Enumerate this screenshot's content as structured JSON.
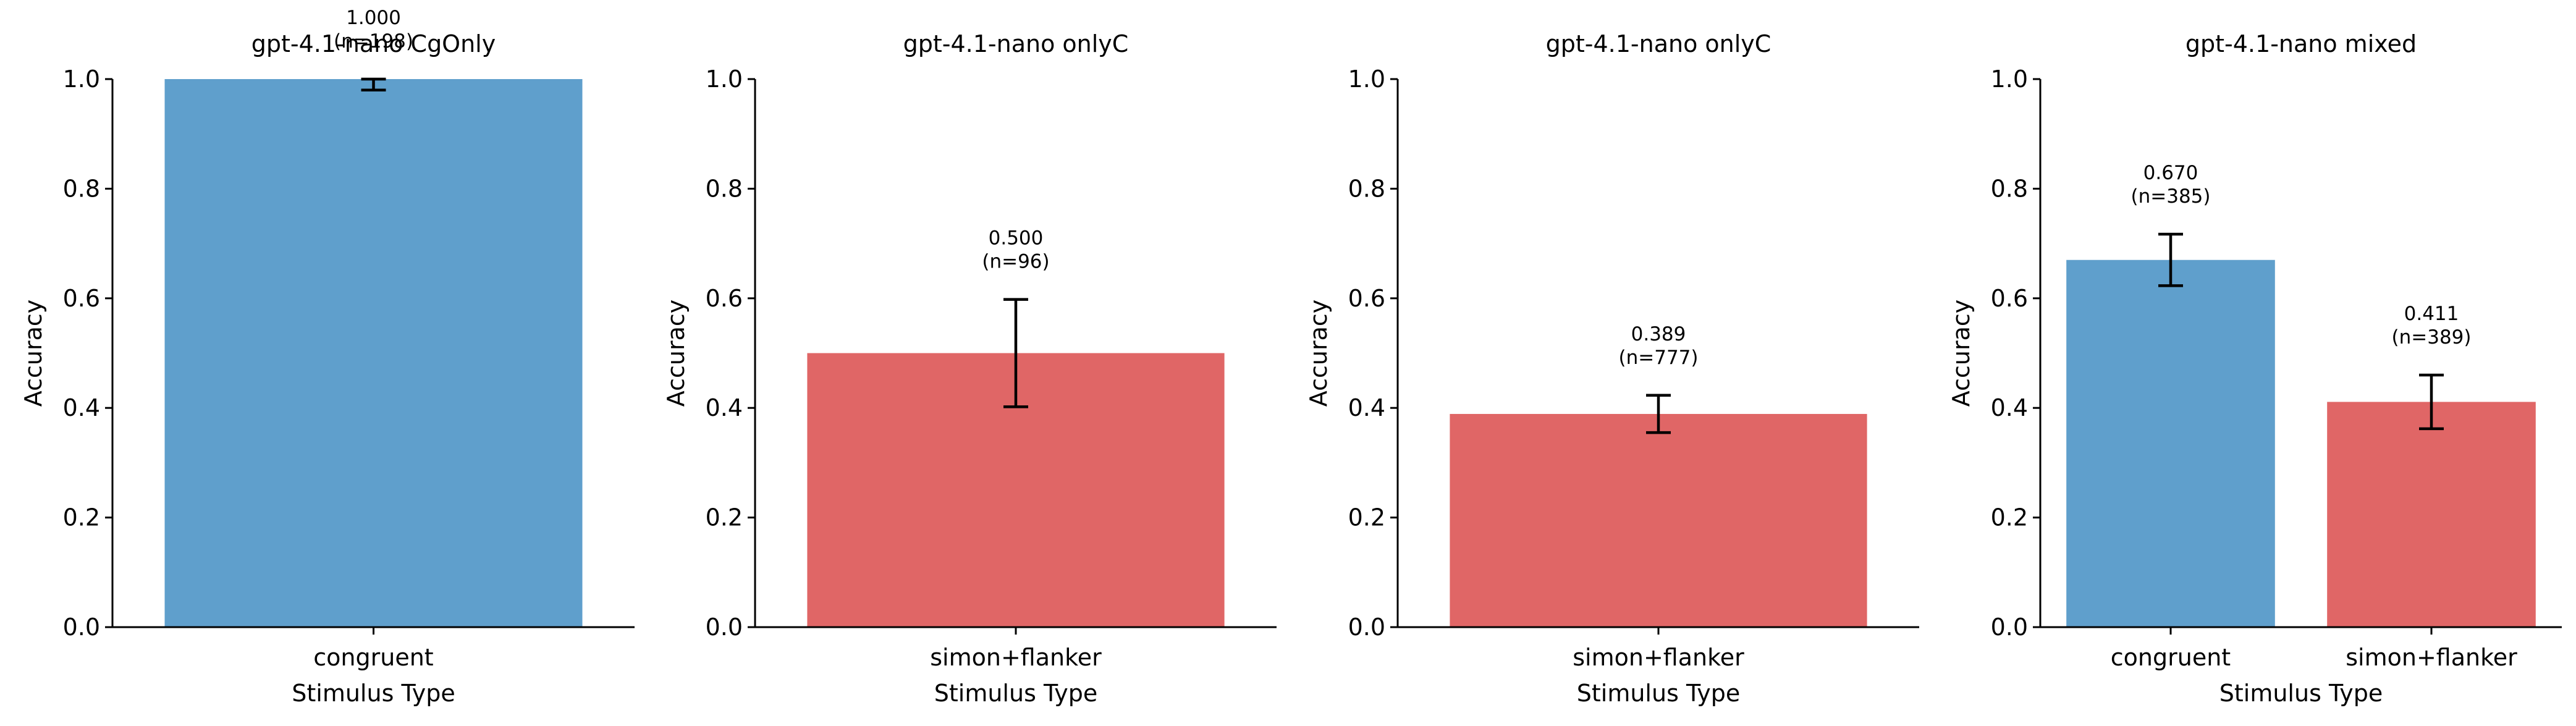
{
  "chart_data": [
    {
      "type": "bar",
      "title": "gpt-4.1-nano CgOnly",
      "xlabel": "Stimulus Type",
      "ylabel": "Accuracy",
      "ylim": [
        0,
        1.0
      ],
      "yticks": [
        "0.0",
        "0.2",
        "0.4",
        "0.6",
        "0.8",
        "1.0"
      ],
      "categories": [
        "congruent"
      ],
      "values": [
        1.0
      ],
      "error_low": [
        0.98
      ],
      "error_high": [
        1.0
      ],
      "bar_labels": [
        "1.000",
        "(n=198)"
      ],
      "colors": [
        "#5f9fcc"
      ]
    },
    {
      "type": "bar",
      "title": "gpt-4.1-nano onlyC",
      "xlabel": "Stimulus Type",
      "ylabel": "Accuracy",
      "ylim": [
        0,
        1.0
      ],
      "yticks": [
        "0.0",
        "0.2",
        "0.4",
        "0.6",
        "0.8",
        "1.0"
      ],
      "categories": [
        "simon+flanker"
      ],
      "values": [
        0.5
      ],
      "error_low": [
        0.402
      ],
      "error_high": [
        0.598
      ],
      "bar_labels": [
        "0.500",
        "(n=96)"
      ],
      "colors": [
        "#e06666"
      ]
    },
    {
      "type": "bar",
      "title": "gpt-4.1-nano onlyC",
      "xlabel": "Stimulus Type",
      "ylabel": "Accuracy",
      "ylim": [
        0,
        1.0
      ],
      "yticks": [
        "0.0",
        "0.2",
        "0.4",
        "0.6",
        "0.8",
        "1.0"
      ],
      "categories": [
        "simon+flanker"
      ],
      "values": [
        0.389
      ],
      "error_low": [
        0.355
      ],
      "error_high": [
        0.423
      ],
      "bar_labels": [
        "0.389",
        "(n=777)"
      ],
      "colors": [
        "#e06666"
      ]
    },
    {
      "type": "bar",
      "title": "gpt-4.1-nano mixed",
      "xlabel": "Stimulus Type",
      "ylabel": "Accuracy",
      "ylim": [
        0,
        1.0
      ],
      "yticks": [
        "0.0",
        "0.2",
        "0.4",
        "0.6",
        "0.8",
        "1.0"
      ],
      "categories": [
        "congruent",
        "simon+flanker"
      ],
      "values": [
        0.67,
        0.411
      ],
      "error_low": [
        0.623,
        0.362
      ],
      "error_high": [
        0.717,
        0.46
      ],
      "bar_labels": [
        "0.670",
        "(n=385)",
        "0.411",
        "(n=389)"
      ],
      "colors": [
        "#5f9fcc",
        "#e06666"
      ]
    }
  ]
}
